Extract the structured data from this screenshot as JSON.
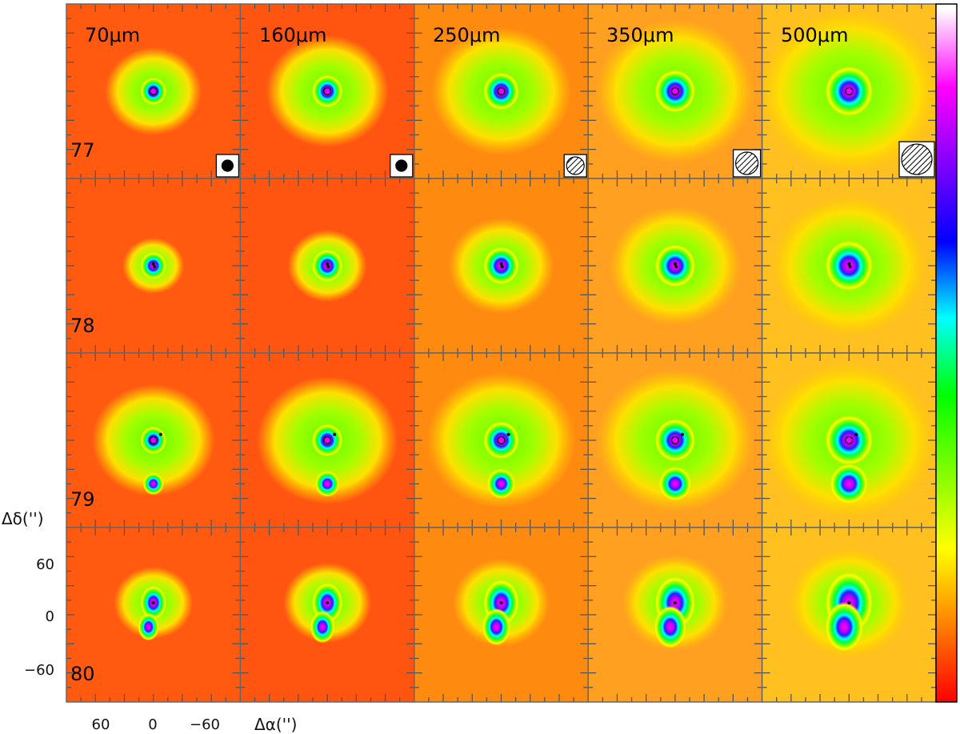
{
  "figure": {
    "wavelength_labels": [
      "70μm",
      "160μm",
      "250μm",
      "350μm",
      "500μm"
    ],
    "source_ids": [
      "77",
      "78",
      "79",
      "80"
    ],
    "y_axis_label": "Δδ('')",
    "x_axis_label": "Δα('')",
    "y_tick_labels": [
      "60",
      "0",
      "−60"
    ],
    "x_tick_labels": [
      "60",
      "0",
      "−60"
    ],
    "colorbar": {
      "colors": [
        "#ff0000",
        "#ff8000",
        "#ffff00",
        "#80ff00",
        "#00ff00",
        "#00ffff",
        "#0000ff",
        "#8000ff",
        "#ff00ff",
        "#ffffff"
      ]
    },
    "beam_markers": [
      "solid-circle",
      "solid-circle",
      "hatched-circle",
      "hatched-circle",
      "hatched-circle"
    ]
  },
  "chart_data": {
    "type": "heatmap",
    "rows": [
      "77",
      "78",
      "79",
      "80"
    ],
    "columns": [
      "70μm",
      "160μm",
      "250μm",
      "350μm",
      "500μm"
    ],
    "xlabel": "Δα('')",
    "ylabel": "Δδ('')",
    "xlim": [
      90,
      -90
    ],
    "ylim": [
      -90,
      90
    ],
    "x_ticks": [
      60,
      0,
      -60
    ],
    "y_ticks": [
      60,
      0,
      -60
    ],
    "sources": [
      {
        "row": "77",
        "peaks": [
          {
            "dx": 0,
            "dy": 0
          }
        ],
        "markers": [
          {
            "dx": 0,
            "dy": 0,
            "kind": "open-circle"
          }
        ]
      },
      {
        "row": "78",
        "peaks": [
          {
            "dx": 0,
            "dy": 0
          }
        ],
        "markers": [
          {
            "dx": 0,
            "dy": 4,
            "kind": "dot"
          },
          {
            "dx": -2,
            "dy": -2,
            "kind": "dot"
          }
        ]
      },
      {
        "row": "79",
        "peaks": [
          {
            "dx": 0,
            "dy": 0
          },
          {
            "dx": 0,
            "dy": -45
          }
        ],
        "markers": [
          {
            "dx": 0,
            "dy": 0,
            "kind": "open-circle"
          },
          {
            "dx": -15,
            "dy": 12,
            "kind": "dot"
          }
        ]
      },
      {
        "row": "80",
        "peaks": [
          {
            "dx": 0,
            "dy": 0
          },
          {
            "dx": 5,
            "dy": -25
          }
        ],
        "markers": [
          {
            "dx": 0,
            "dy": 0,
            "kind": "dot"
          }
        ]
      }
    ]
  }
}
